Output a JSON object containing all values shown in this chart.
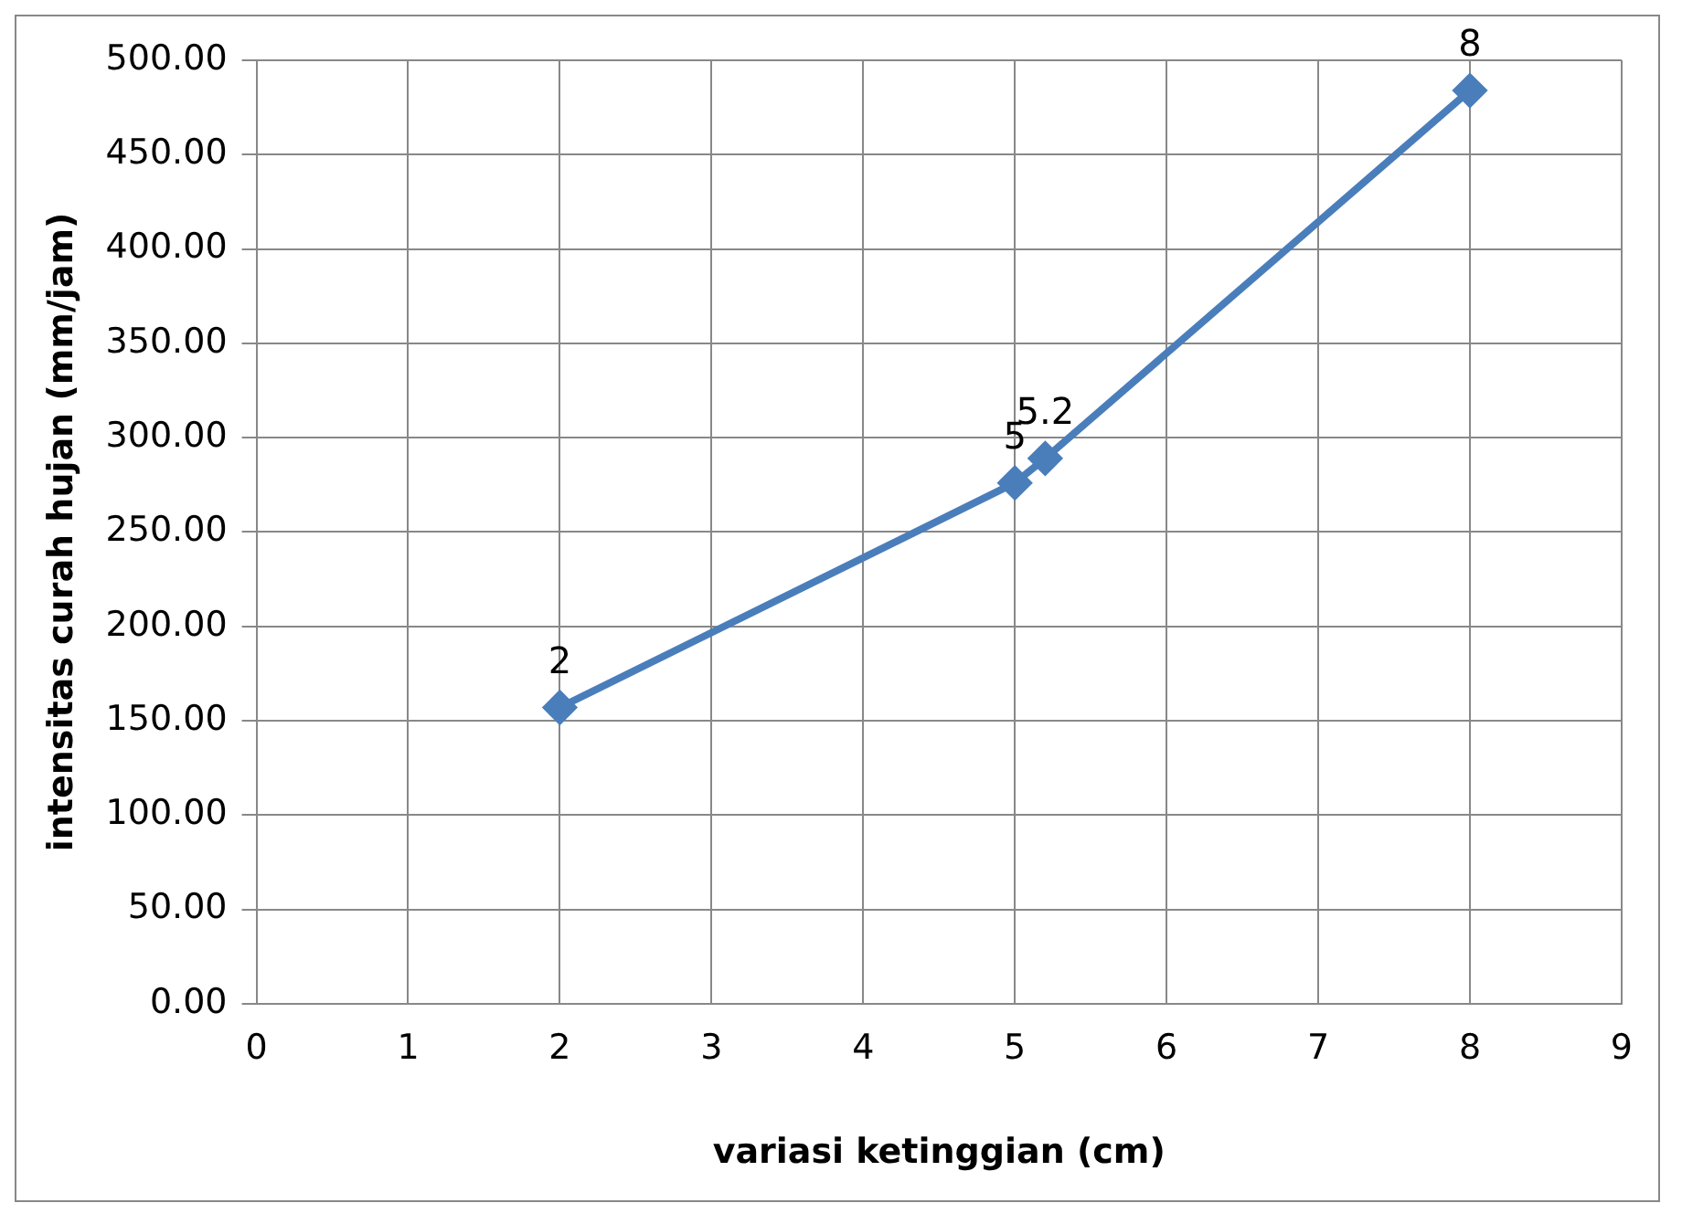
{
  "chart_data": {
    "type": "line",
    "xlabel": "variasi ketinggian (cm)",
    "ylabel": "intensitas curah hujan (mm/jam)",
    "series": [
      {
        "color": "#4a7ebb",
        "x": [
          2,
          5,
          5.2,
          8
        ],
        "values": [
          157,
          276,
          289,
          484
        ]
      }
    ],
    "annotations": [
      {
        "text": "2",
        "x": 2,
        "y": 157
      },
      {
        "text": "5",
        "x": 5,
        "y": 276
      },
      {
        "text": "5.2",
        "x": 5.2,
        "y": 289
      },
      {
        "text": "8",
        "x": 8,
        "y": 484
      }
    ],
    "xlim": [
      0,
      9
    ],
    "xticks": [
      0,
      1,
      2,
      3,
      4,
      5,
      6,
      7,
      8,
      9
    ],
    "ylim": [
      0,
      500
    ],
    "yticks": [
      {
        "value": 0,
        "label": "0.00"
      },
      {
        "value": 50,
        "label": "50.00"
      },
      {
        "value": 100,
        "label": "100.00"
      },
      {
        "value": 150,
        "label": "150.00"
      },
      {
        "value": 200,
        "label": "200.00"
      },
      {
        "value": 250,
        "label": "250.00"
      },
      {
        "value": 300,
        "label": "300.00"
      },
      {
        "value": 350,
        "label": "350.00"
      },
      {
        "value": 400,
        "label": "400.00"
      },
      {
        "value": 450,
        "label": "450.00"
      },
      {
        "value": 500,
        "label": "500.00"
      }
    ],
    "grid": true,
    "legend": false,
    "marker": "diamond",
    "line_style": "solid"
  }
}
